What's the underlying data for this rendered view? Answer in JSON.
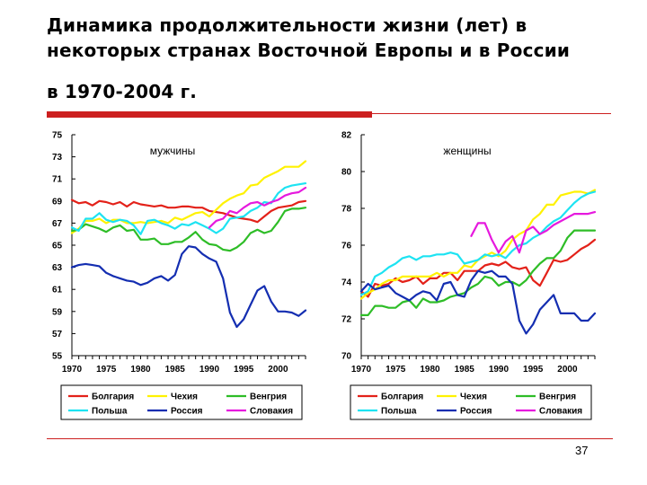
{
  "slide": {
    "title_line1": "Динамика продолжительности жизни (лет) в",
    "title_line2": "некоторых странах Восточной Европы и в России",
    "title_line3": "в 1970-2004 г.",
    "page_number": "37",
    "accent_color": "#cc1f1f"
  },
  "chart_data": [
    {
      "type": "line",
      "panel_label": "мужчины",
      "ylim": [
        55,
        75
      ],
      "yticks": [
        55,
        57,
        59,
        61,
        63,
        65,
        67,
        69,
        71,
        73,
        75
      ],
      "xlim": [
        1970,
        2004
      ],
      "xticks": [
        1970,
        1975,
        1980,
        1985,
        1990,
        1995,
        2000
      ],
      "x": [
        1970,
        1971,
        1972,
        1973,
        1974,
        1975,
        1976,
        1977,
        1978,
        1979,
        1980,
        1981,
        1982,
        1983,
        1984,
        1985,
        1986,
        1987,
        1988,
        1989,
        1990,
        1991,
        1992,
        1993,
        1994,
        1995,
        1996,
        1997,
        1998,
        1999,
        2000,
        2001,
        2002,
        2003,
        2004
      ],
      "legend": [
        "Болгария",
        "Чехия",
        "Венгрия",
        "Польша",
        "Россия",
        "Словакия"
      ],
      "series": [
        {
          "name": "Болгария",
          "color": "#e32119",
          "values": [
            69.1,
            68.8,
            68.9,
            68.6,
            69.0,
            68.9,
            68.7,
            68.9,
            68.5,
            68.9,
            68.7,
            68.6,
            68.5,
            68.6,
            68.4,
            68.4,
            68.5,
            68.5,
            68.4,
            68.4,
            68.1,
            68.0,
            67.9,
            67.7,
            67.5,
            67.4,
            67.3,
            67.1,
            67.6,
            68.1,
            68.4,
            68.5,
            68.6,
            68.9,
            69.0
          ]
        },
        {
          "name": "Чехия",
          "color": "#fff200",
          "values": [
            66.1,
            66.5,
            67.2,
            67.2,
            67.4,
            67.0,
            67.3,
            67.3,
            67.0,
            67.0,
            67.1,
            67.0,
            67.1,
            67.2,
            67.0,
            67.5,
            67.3,
            67.6,
            67.9,
            68.0,
            67.6,
            68.2,
            68.8,
            69.2,
            69.5,
            69.7,
            70.4,
            70.5,
            71.1,
            71.4,
            71.7,
            72.1,
            72.1,
            72.1,
            72.6
          ]
        },
        {
          "name": "Венгрия",
          "color": "#2ebd27",
          "values": [
            66.3,
            66.4,
            66.9,
            66.7,
            66.5,
            66.2,
            66.6,
            66.8,
            66.3,
            66.4,
            65.5,
            65.5,
            65.6,
            65.1,
            65.1,
            65.3,
            65.3,
            65.7,
            66.2,
            65.5,
            65.1,
            65.0,
            64.6,
            64.5,
            64.8,
            65.3,
            66.1,
            66.4,
            66.1,
            66.3,
            67.1,
            68.1,
            68.3,
            68.3,
            68.4
          ]
        },
        {
          "name": "Польша",
          "color": "#1de3f2",
          "values": [
            66.6,
            66.3,
            67.4,
            67.4,
            67.9,
            67.3,
            67.1,
            67.3,
            67.2,
            66.8,
            66.0,
            67.2,
            67.3,
            67.0,
            66.8,
            66.5,
            66.9,
            66.8,
            67.1,
            66.8,
            66.5,
            66.1,
            66.5,
            67.4,
            67.5,
            67.6,
            68.1,
            68.4,
            68.9,
            68.8,
            69.7,
            70.2,
            70.4,
            70.5,
            70.6
          ]
        },
        {
          "name": "Россия",
          "color": "#142eb1",
          "values": [
            63.0,
            63.2,
            63.3,
            63.2,
            63.1,
            62.5,
            62.2,
            62.0,
            61.8,
            61.7,
            61.4,
            61.6,
            62.0,
            62.2,
            61.8,
            62.3,
            64.2,
            64.9,
            64.8,
            64.2,
            63.8,
            63.5,
            62.0,
            58.9,
            57.6,
            58.3,
            59.6,
            60.9,
            61.3,
            59.9,
            59.0,
            59.0,
            58.9,
            58.6,
            59.1
          ]
        },
        {
          "name": "Словакия",
          "color": "#e619de",
          "values": [
            null,
            null,
            null,
            null,
            null,
            null,
            null,
            null,
            null,
            null,
            null,
            null,
            null,
            null,
            null,
            null,
            null,
            null,
            null,
            null,
            66.6,
            67.2,
            67.4,
            68.1,
            67.9,
            68.4,
            68.8,
            68.9,
            68.6,
            68.9,
            69.1,
            69.5,
            69.7,
            69.8,
            70.2
          ]
        }
      ]
    },
    {
      "type": "line",
      "panel_label": "женщины",
      "ylim": [
        70,
        82
      ],
      "yticks": [
        70,
        72,
        74,
        76,
        78,
        80,
        82
      ],
      "xlim": [
        1970,
        2004
      ],
      "xticks": [
        1970,
        1975,
        1980,
        1985,
        1990,
        1995,
        2000
      ],
      "x": [
        1970,
        1971,
        1972,
        1973,
        1974,
        1975,
        1976,
        1977,
        1978,
        1979,
        1980,
        1981,
        1982,
        1983,
        1984,
        1985,
        1986,
        1987,
        1988,
        1989,
        1990,
        1991,
        1992,
        1993,
        1994,
        1995,
        1996,
        1997,
        1998,
        1999,
        2000,
        2001,
        2002,
        2003,
        2004
      ],
      "legend": [
        "Болгария",
        "Чехия",
        "Венгрия",
        "Польша",
        "Россия",
        "Словакия"
      ],
      "series": [
        {
          "name": "Болгария",
          "color": "#e32119",
          "values": [
            73.5,
            73.2,
            73.9,
            73.8,
            73.9,
            74.2,
            74.0,
            74.1,
            74.3,
            73.9,
            74.2,
            74.2,
            74.5,
            74.5,
            74.1,
            74.6,
            74.6,
            74.6,
            74.9,
            75.0,
            74.9,
            75.1,
            74.8,
            74.7,
            74.8,
            74.1,
            73.8,
            74.5,
            75.2,
            75.1,
            75.2,
            75.5,
            75.8,
            76.0,
            76.3
          ]
        },
        {
          "name": "Чехия",
          "color": "#fff200",
          "values": [
            73.1,
            73.4,
            73.6,
            73.9,
            74.1,
            74.1,
            74.3,
            74.3,
            74.3,
            74.3,
            74.3,
            74.5,
            74.3,
            74.5,
            74.5,
            74.9,
            74.8,
            75.2,
            75.4,
            75.6,
            75.4,
            75.7,
            76.3,
            76.6,
            76.8,
            77.4,
            77.7,
            78.2,
            78.2,
            78.7,
            78.8,
            78.9,
            78.9,
            78.8,
            79.0
          ]
        },
        {
          "name": "Венгрия",
          "color": "#2ebd27",
          "values": [
            72.2,
            72.2,
            72.7,
            72.7,
            72.6,
            72.6,
            72.9,
            73.0,
            72.6,
            73.1,
            72.9,
            72.9,
            73.0,
            73.2,
            73.3,
            73.4,
            73.7,
            73.9,
            74.3,
            74.2,
            73.8,
            74.0,
            74.0,
            73.8,
            74.1,
            74.6,
            75.0,
            75.3,
            75.3,
            75.7,
            76.4,
            76.8,
            76.8,
            76.8,
            76.8
          ]
        },
        {
          "name": "Польша",
          "color": "#1de3f2",
          "values": [
            73.3,
            73.5,
            74.3,
            74.5,
            74.8,
            75.0,
            75.3,
            75.4,
            75.2,
            75.4,
            75.4,
            75.5,
            75.5,
            75.6,
            75.5,
            75.0,
            75.1,
            75.2,
            75.5,
            75.4,
            75.5,
            75.3,
            75.7,
            76.0,
            76.1,
            76.4,
            76.6,
            77.0,
            77.3,
            77.5,
            77.9,
            78.3,
            78.6,
            78.8,
            78.9
          ]
        },
        {
          "name": "Россия",
          "color": "#142eb1",
          "values": [
            73.5,
            73.9,
            73.6,
            73.7,
            73.8,
            73.4,
            73.2,
            73.0,
            73.3,
            73.5,
            73.4,
            73.0,
            73.9,
            74.0,
            73.3,
            73.2,
            74.1,
            74.6,
            74.5,
            74.6,
            74.3,
            74.3,
            73.9,
            71.9,
            71.2,
            71.7,
            72.5,
            72.9,
            73.3,
            72.3,
            72.3,
            72.3,
            71.9,
            71.9,
            72.3
          ]
        },
        {
          "name": "Словакия",
          "color": "#e619de",
          "values": [
            null,
            null,
            null,
            null,
            null,
            null,
            null,
            null,
            null,
            null,
            null,
            null,
            null,
            null,
            null,
            null,
            76.5,
            77.2,
            77.2,
            76.3,
            75.6,
            76.2,
            76.5,
            75.6,
            76.8,
            77.0,
            76.6,
            76.8,
            77.1,
            77.3,
            77.5,
            77.7,
            77.7,
            77.7,
            77.8
          ]
        }
      ]
    }
  ]
}
